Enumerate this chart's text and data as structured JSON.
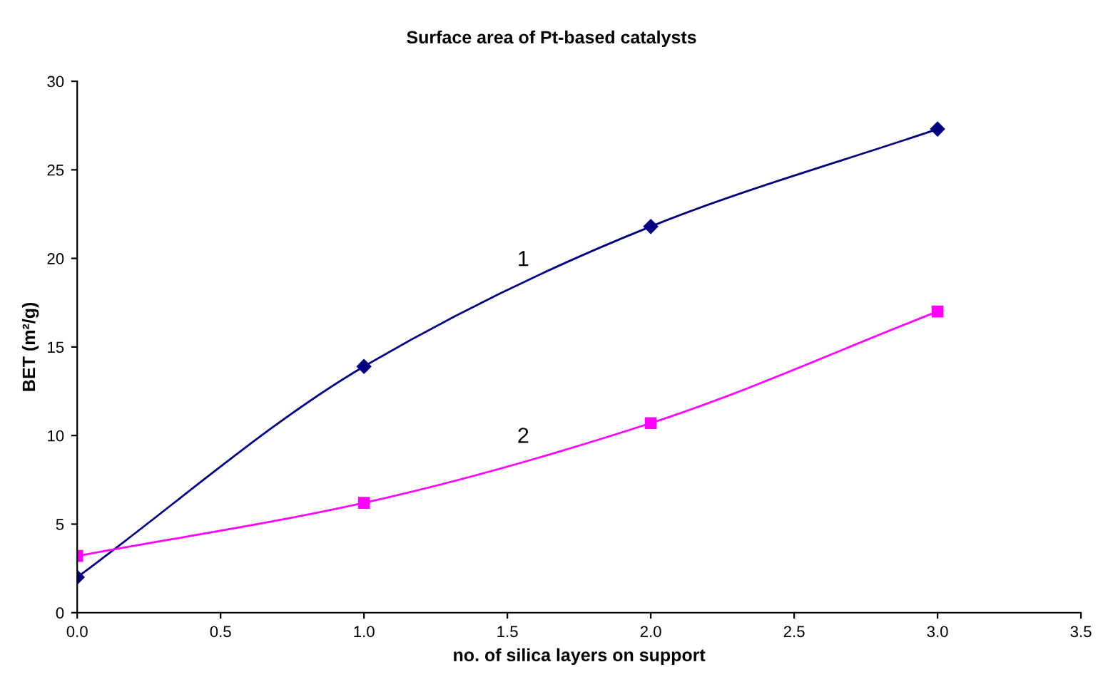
{
  "chart_data": {
    "type": "line",
    "title": "Surface area of Pt-based catalysts",
    "xlabel": "no. of silica layers on support",
    "ylabel": "BET (m²/g)",
    "x": [
      0,
      1,
      2,
      3
    ],
    "series": [
      {
        "name": "1",
        "color": "#000080",
        "marker": "diamond",
        "values": [
          2.0,
          13.9,
          21.8,
          27.3
        ]
      },
      {
        "name": "2",
        "color": "#ff00ff",
        "marker": "square",
        "values": [
          3.2,
          6.2,
          10.7,
          17.0
        ]
      }
    ],
    "xlim": [
      0,
      3.5
    ],
    "xticks": [
      {
        "value": 0,
        "label": "0.0"
      },
      {
        "value": 0.5,
        "label": "0.5"
      },
      {
        "value": 1,
        "label": "1.0"
      },
      {
        "value": 1.5,
        "label": "1.5"
      },
      {
        "value": 2,
        "label": "2.0"
      },
      {
        "value": 2.5,
        "label": "2.5"
      },
      {
        "value": 3,
        "label": "3.0"
      },
      {
        "value": 3.5,
        "label": "3.5"
      }
    ],
    "ylim": [
      0,
      30
    ],
    "yticks": [
      0,
      5,
      10,
      15,
      20,
      25,
      30
    ],
    "grid": false,
    "legend": false,
    "line_style": "solid"
  }
}
